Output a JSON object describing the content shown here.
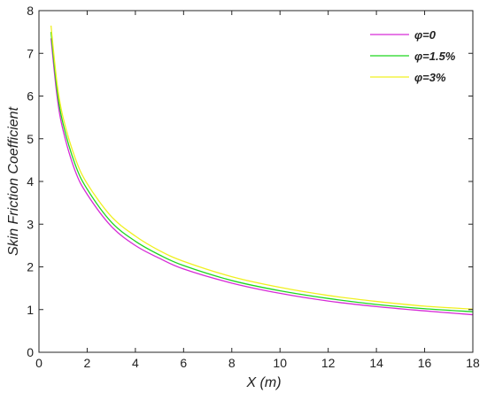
{
  "chart_data": {
    "type": "line",
    "xlabel": "X (m)",
    "ylabel": "Skin Friction Coefficient",
    "xlim": [
      0,
      18
    ],
    "ylim": [
      0,
      8
    ],
    "xticks": [
      0,
      2,
      4,
      6,
      8,
      10,
      12,
      14,
      16,
      18
    ],
    "yticks": [
      0,
      1,
      2,
      3,
      4,
      5,
      6,
      7,
      8
    ],
    "grid": false,
    "legend_position": "top-right",
    "x": [
      0.5,
      0.75,
      1,
      1.5,
      2,
      3,
      4,
      5,
      6,
      8,
      10,
      12,
      14,
      16,
      18
    ],
    "series": [
      {
        "name": "φ=0",
        "color": "#d62ad6",
        "values": [
          7.35,
          6.0,
          5.2,
          4.25,
          3.7,
          2.95,
          2.5,
          2.2,
          1.95,
          1.62,
          1.38,
          1.2,
          1.07,
          0.97,
          0.88
        ]
      },
      {
        "name": "φ=1.5%",
        "color": "#1ed61e",
        "values": [
          7.5,
          6.15,
          5.35,
          4.4,
          3.82,
          3.05,
          2.6,
          2.28,
          2.03,
          1.68,
          1.44,
          1.26,
          1.12,
          1.02,
          0.95
        ]
      },
      {
        "name": "φ=3%",
        "color": "#f0f020",
        "values": [
          7.65,
          6.3,
          5.5,
          4.55,
          3.95,
          3.18,
          2.72,
          2.38,
          2.13,
          1.77,
          1.52,
          1.33,
          1.19,
          1.08,
          1.01
        ]
      }
    ]
  }
}
